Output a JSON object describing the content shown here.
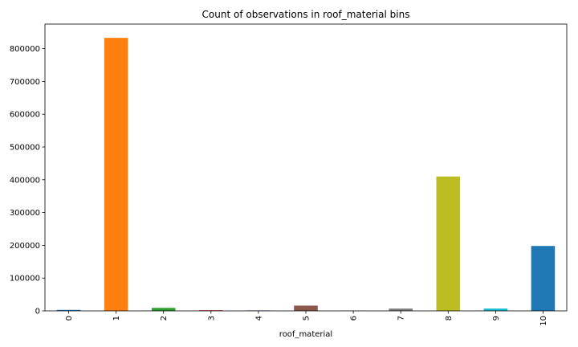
{
  "chart_data": {
    "type": "bar",
    "title": "Count of observations in roof_material bins",
    "xlabel": "roof_material",
    "ylabel": "",
    "categories": [
      "0",
      "1",
      "2",
      "3",
      "4",
      "5",
      "6",
      "7",
      "8",
      "9",
      "10"
    ],
    "values": [
      3000,
      833000,
      9000,
      2000,
      1500,
      16000,
      500,
      7000,
      410000,
      7000,
      198000
    ],
    "ylim": [
      0,
      875000
    ],
    "yticks": [
      0,
      100000,
      200000,
      300000,
      400000,
      500000,
      600000,
      700000,
      800000
    ],
    "ytick_labels": [
      "0",
      "100000",
      "200000",
      "300000",
      "400000",
      "500000",
      "600000",
      "700000",
      "800000"
    ],
    "colors": [
      "#1f77b4",
      "#ff7f0e",
      "#2ca02c",
      "#d62728",
      "#9467bd",
      "#8c564b",
      "#e377c2",
      "#7f7f7f",
      "#bcbd22",
      "#17becf",
      "#1f77b4"
    ],
    "grid": false,
    "legend": "none"
  }
}
